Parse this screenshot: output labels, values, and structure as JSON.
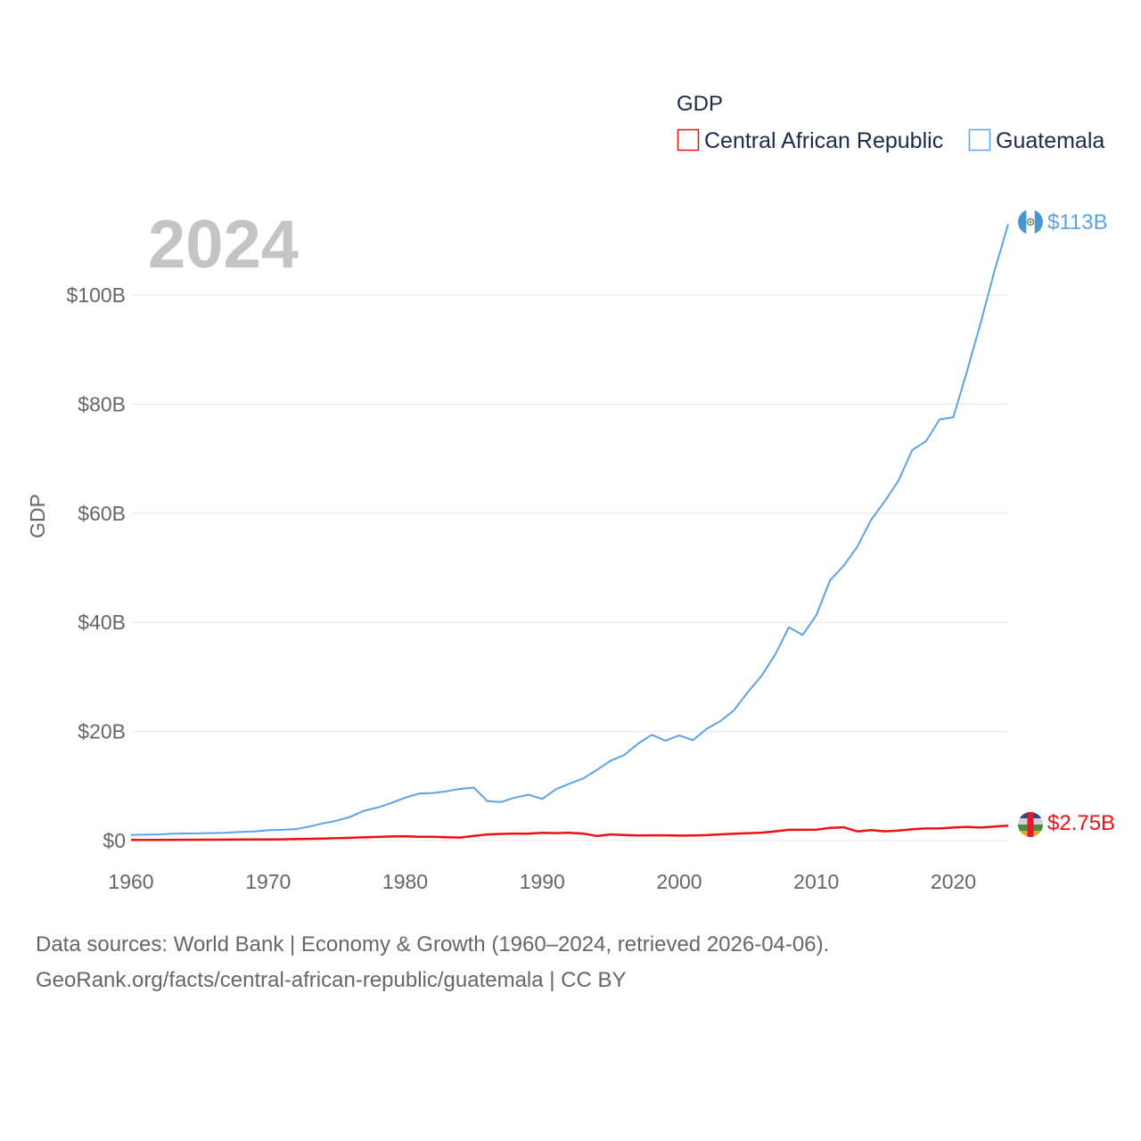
{
  "chart_data": {
    "type": "line",
    "title": "",
    "year_label": "2024",
    "xlabel": "",
    "ylabel": "GDP",
    "legend_title": "GDP",
    "legend_position": "top-right",
    "xlim": [
      1960,
      2024
    ],
    "ylim": [
      0,
      113
    ],
    "x_ticks": [
      1960,
      1970,
      1980,
      1990,
      2000,
      2010,
      2020
    ],
    "y_ticks": [
      0,
      20,
      40,
      60,
      80,
      100
    ],
    "y_tick_labels": [
      "$0",
      "$20B",
      "$40B",
      "$60B",
      "$80B",
      "$100B"
    ],
    "grid": true,
    "x": [
      1960,
      1961,
      1962,
      1963,
      1964,
      1965,
      1966,
      1967,
      1968,
      1969,
      1970,
      1971,
      1972,
      1973,
      1974,
      1975,
      1976,
      1977,
      1978,
      1979,
      1980,
      1981,
      1982,
      1983,
      1984,
      1985,
      1986,
      1987,
      1988,
      1989,
      1990,
      1991,
      1992,
      1993,
      1994,
      1995,
      1996,
      1997,
      1998,
      1999,
      2000,
      2001,
      2002,
      2003,
      2004,
      2005,
      2006,
      2007,
      2008,
      2009,
      2010,
      2011,
      2012,
      2013,
      2014,
      2015,
      2016,
      2017,
      2018,
      2019,
      2020,
      2021,
      2022,
      2023,
      2024
    ],
    "series": [
      {
        "name": "Central African Republic",
        "color": "#ee1111",
        "end_label": "$2.75B",
        "values": [
          0.11,
          0.12,
          0.13,
          0.14,
          0.15,
          0.16,
          0.17,
          0.18,
          0.19,
          0.2,
          0.21,
          0.23,
          0.27,
          0.33,
          0.37,
          0.44,
          0.51,
          0.6,
          0.67,
          0.75,
          0.8,
          0.71,
          0.7,
          0.62,
          0.55,
          0.87,
          1.12,
          1.22,
          1.29,
          1.26,
          1.44,
          1.38,
          1.44,
          1.28,
          0.85,
          1.12,
          1.03,
          0.94,
          0.96,
          0.97,
          0.91,
          0.93,
          0.99,
          1.14,
          1.27,
          1.35,
          1.46,
          1.7,
          1.98,
          1.98,
          2.0,
          2.34,
          2.44,
          1.69,
          1.91,
          1.7,
          1.83,
          2.07,
          2.22,
          2.22,
          2.38,
          2.52,
          2.38,
          2.56,
          2.75
        ]
      },
      {
        "name": "Guatemala",
        "color": "#5ba3e6",
        "end_label": "$113B",
        "values": [
          1.04,
          1.08,
          1.13,
          1.26,
          1.3,
          1.33,
          1.39,
          1.45,
          1.58,
          1.66,
          1.9,
          1.98,
          2.1,
          2.57,
          3.16,
          3.65,
          4.36,
          5.48,
          6.07,
          6.9,
          7.88,
          8.61,
          8.72,
          9.03,
          9.47,
          9.72,
          7.23,
          7.08,
          7.87,
          8.42,
          7.65,
          9.41,
          10.44,
          11.4,
          12.98,
          14.66,
          15.7,
          17.8,
          19.4,
          18.3,
          19.3,
          18.4,
          20.5,
          21.9,
          23.9,
          27.2,
          30.2,
          34.1,
          39.1,
          37.7,
          41.3,
          47.7,
          50.4,
          53.9,
          58.8,
          62.2,
          66.0,
          71.6,
          73.2,
          77.2,
          77.6,
          86.1,
          95.0,
          104.4,
          113.0
        ]
      }
    ]
  },
  "footer": {
    "line1": "Data sources: World Bank | Economy & Growth (1960–2024, retrieved 2026-04-06).",
    "line2": "GeoRank.org/facts/central-african-republic/guatemala | CC BY"
  }
}
